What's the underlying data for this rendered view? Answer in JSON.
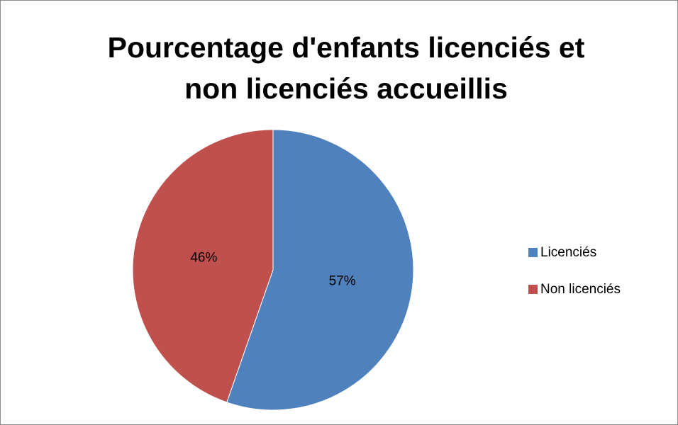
{
  "chart_data": {
    "type": "pie",
    "title": "Pourcentage d'enfants licenciés et non licenciés accueillis",
    "categories": [
      "Licenciés",
      "Non licenciés"
    ],
    "values": [
      57,
      46
    ],
    "value_labels": [
      "57%",
      "46%"
    ],
    "colors": [
      "#4f81bd",
      "#c0504d"
    ],
    "legend": "right"
  }
}
